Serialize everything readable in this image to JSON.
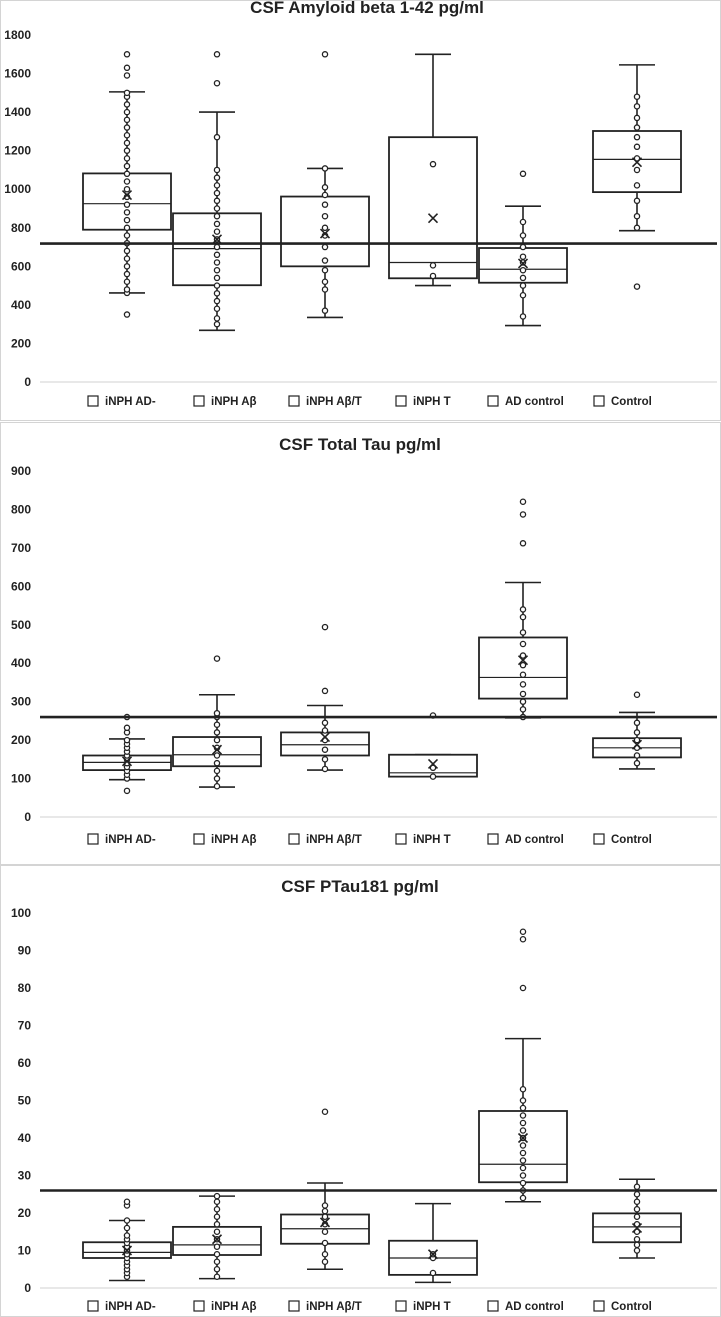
{
  "chart_data": [
    {
      "type": "boxplot",
      "title": "CSF Amyloid beta 1-42 pg/ml",
      "ylim": [
        0,
        1800
      ],
      "yticks": [
        0,
        200,
        400,
        600,
        800,
        1000,
        1200,
        1400,
        1600,
        1800
      ],
      "reference_line": 718,
      "grid": false,
      "legend_position": "bottom",
      "categories": [
        "iNPH AD-",
        "iNPH Aβ",
        "iNPH Aβ/T",
        "iNPH T",
        "AD control",
        "Control"
      ],
      "boxes": [
        {
          "name": "iNPH AD-",
          "min": 462,
          "q1": 790,
          "median": 925,
          "q3": 1082,
          "max": 1505,
          "mean": 970,
          "points": [
            350,
            462,
            480,
            520,
            560,
            600,
            640,
            680,
            720,
            760,
            800,
            840,
            880,
            920,
            960,
            1000,
            1040,
            1080,
            1120,
            1160,
            1200,
            1240,
            1280,
            1320,
            1360,
            1400,
            1440,
            1480,
            1500,
            1590,
            1630,
            1700
          ]
        },
        {
          "name": "iNPH Aβ",
          "min": 268,
          "q1": 502,
          "median": 692,
          "q3": 875,
          "max": 1400,
          "mean": 740,
          "points": [
            300,
            330,
            380,
            420,
            460,
            500,
            540,
            580,
            620,
            660,
            700,
            740,
            780,
            820,
            860,
            900,
            940,
            980,
            1020,
            1060,
            1100,
            1270,
            1550,
            1700
          ]
        },
        {
          "name": "iNPH Aβ/T",
          "min": 335,
          "q1": 600,
          "median": 720,
          "q3": 962,
          "max": 1108,
          "mean": 770,
          "points": [
            370,
            480,
            520,
            580,
            630,
            700,
            760,
            800,
            860,
            920,
            970,
            1010,
            1108,
            1700
          ]
        },
        {
          "name": "iNPH T",
          "min": 500,
          "q1": 538,
          "median": 620,
          "q3": 1270,
          "max": 1700,
          "mean": 850,
          "points": [
            550,
            605,
            1130
          ]
        },
        {
          "name": "AD control",
          "min": 293,
          "q1": 515,
          "median": 585,
          "q3": 695,
          "max": 912,
          "mean": 615,
          "points": [
            340,
            450,
            500,
            540,
            580,
            620,
            650,
            700,
            760,
            830,
            1080
          ]
        },
        {
          "name": "Control",
          "min": 785,
          "q1": 985,
          "median": 1155,
          "q3": 1302,
          "max": 1645,
          "mean": 1140,
          "points": [
            495,
            800,
            860,
            940,
            1020,
            1100,
            1160,
            1220,
            1270,
            1320,
            1370,
            1430,
            1480
          ]
        }
      ]
    },
    {
      "type": "boxplot",
      "title": "CSF Total Tau pg/ml",
      "ylim": [
        0,
        900
      ],
      "yticks": [
        0,
        100,
        200,
        300,
        400,
        500,
        600,
        700,
        800,
        900
      ],
      "reference_line": 260,
      "grid": false,
      "legend_position": "bottom",
      "categories": [
        "iNPH AD-",
        "iNPH Aβ",
        "iNPH Aβ/T",
        "iNPH T",
        "AD control",
        "Control"
      ],
      "boxes": [
        {
          "name": "iNPH AD-",
          "min": 97,
          "q1": 122,
          "median": 142,
          "q3": 160,
          "max": 203,
          "mean": 145,
          "points": [
            68,
            100,
            110,
            120,
            130,
            140,
            150,
            160,
            170,
            180,
            190,
            200,
            220,
            232,
            260
          ]
        },
        {
          "name": "iNPH Aβ",
          "min": 78,
          "q1": 132,
          "median": 162,
          "q3": 208,
          "max": 318,
          "mean": 175,
          "points": [
            80,
            100,
            120,
            140,
            160,
            180,
            200,
            220,
            240,
            260,
            270,
            412
          ]
        },
        {
          "name": "iNPH Aβ/T",
          "min": 122,
          "q1": 160,
          "median": 188,
          "q3": 220,
          "max": 290,
          "mean": 208,
          "points": [
            125,
            150,
            175,
            200,
            225,
            245,
            328,
            494
          ]
        },
        {
          "name": "iNPH T",
          "min": 105,
          "q1": 105,
          "median": 115,
          "q3": 162,
          "max": 162,
          "mean": 138,
          "points": [
            105,
            128,
            264
          ]
        },
        {
          "name": "AD control",
          "min": 258,
          "q1": 308,
          "median": 363,
          "q3": 467,
          "max": 610,
          "mean": 408,
          "points": [
            260,
            280,
            300,
            320,
            345,
            370,
            395,
            420,
            450,
            480,
            520,
            540,
            712,
            787,
            820
          ]
        },
        {
          "name": "Control",
          "min": 125,
          "q1": 155,
          "median": 180,
          "q3": 205,
          "max": 272,
          "mean": 188,
          "points": [
            140,
            160,
            180,
            200,
            220,
            245,
            318
          ]
        }
      ]
    },
    {
      "type": "boxplot",
      "title": "CSF PTau181 pg/ml",
      "ylim": [
        0,
        100
      ],
      "yticks": [
        0,
        10,
        20,
        30,
        40,
        50,
        60,
        70,
        80,
        90,
        100
      ],
      "reference_line": 26,
      "grid": false,
      "legend_position": "bottom",
      "categories": [
        "iNPH AD-",
        "iNPH Aβ",
        "iNPH Aβ/T",
        "iNPH T",
        "AD control",
        "Control"
      ],
      "boxes": [
        {
          "name": "iNPH AD-",
          "min": 2,
          "q1": 8,
          "median": 9.5,
          "q3": 12.2,
          "max": 18,
          "mean": 10,
          "points": [
            3,
            4,
            5,
            6,
            7,
            8,
            9,
            10,
            11,
            12,
            13,
            14,
            16,
            18,
            22,
            23
          ]
        },
        {
          "name": "iNPH Aβ",
          "min": 2.5,
          "q1": 8.8,
          "median": 11.5,
          "q3": 16.3,
          "max": 24.5,
          "mean": 13,
          "points": [
            3,
            5,
            7,
            9,
            11,
            13,
            15,
            17,
            19,
            21,
            23,
            24.5
          ]
        },
        {
          "name": "iNPH Aβ/T",
          "min": 5,
          "q1": 11.8,
          "median": 15.8,
          "q3": 19.6,
          "max": 28,
          "mean": 17.5,
          "points": [
            7,
            9,
            12,
            15,
            17,
            19,
            20.5,
            22,
            47
          ]
        },
        {
          "name": "iNPH T",
          "min": 1.5,
          "q1": 3.5,
          "median": 8,
          "q3": 12.6,
          "max": 22.5,
          "mean": 9,
          "points": [
            4,
            8,
            9
          ]
        },
        {
          "name": "AD control",
          "min": 23,
          "q1": 28.2,
          "median": 33,
          "q3": 47.2,
          "max": 66.5,
          "mean": 40,
          "points": [
            24,
            26,
            28,
            30,
            32,
            34,
            36,
            38,
            40,
            42,
            44,
            46,
            48,
            50,
            53,
            80,
            93,
            95
          ]
        },
        {
          "name": "Control",
          "min": 8,
          "q1": 12.2,
          "median": 16.3,
          "q3": 19.9,
          "max": 29,
          "mean": 16,
          "points": [
            10,
            11.5,
            13,
            15,
            17,
            19,
            21,
            23,
            25,
            27
          ]
        }
      ]
    }
  ]
}
